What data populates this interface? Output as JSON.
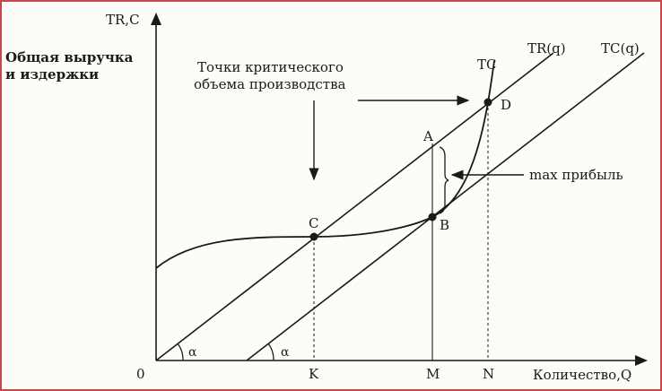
{
  "axes": {
    "y_label": "TR,C",
    "y_title_line1": "Общая выручка",
    "y_title_line2": "и издержки",
    "x_label": "Количество,Q",
    "origin": "0"
  },
  "annotation": {
    "line1": "Точки критического",
    "line2": "объема производства",
    "max_profit": "max прибыль"
  },
  "curves": {
    "tc": "TC",
    "tr": "TR(q)",
    "tc_line": "TC(q)"
  },
  "points": {
    "a": "A",
    "b": "B",
    "c": "C",
    "d": "D"
  },
  "ticks": {
    "k": "K",
    "m": "M",
    "n": "N"
  },
  "angles": {
    "alpha1": "α",
    "alpha2": "α"
  }
}
